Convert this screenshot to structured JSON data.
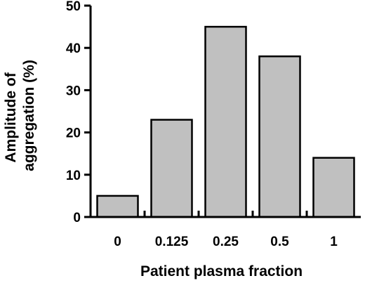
{
  "chart_data": {
    "type": "bar",
    "title": "",
    "xlabel": "Patient plasma fraction",
    "ylabel_lines": [
      "Amplitude of",
      "aggregation (%)"
    ],
    "categories": [
      "0",
      "0.125",
      "0.25",
      "0.5",
      "1"
    ],
    "values": [
      5,
      23,
      45,
      38,
      14
    ],
    "ylim": [
      0,
      50
    ],
    "yticks": [
      0,
      10,
      20,
      30,
      40,
      50
    ],
    "grid": false,
    "legend": "none",
    "colors": {
      "bar_fill": "#c0c0c0",
      "bar_stroke": "#000000",
      "axis": "#000000"
    }
  }
}
